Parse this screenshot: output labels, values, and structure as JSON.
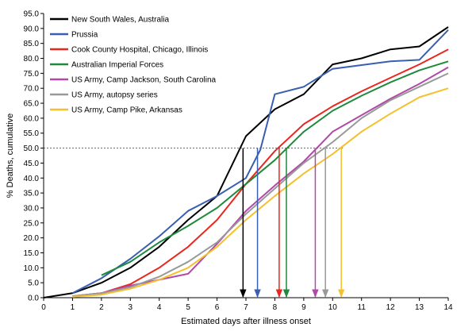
{
  "chart_data": {
    "type": "line",
    "title": "",
    "xlabel": "Estimated days after illness onset",
    "ylabel": "% Deaths, cumulative",
    "xlim": [
      0,
      14
    ],
    "ylim": [
      0,
      95
    ],
    "x_ticks": [
      0,
      1,
      2,
      3,
      4,
      5,
      6,
      7,
      8,
      9,
      10,
      11,
      12,
      13,
      14
    ],
    "y_ticks": [
      "0.0",
      "5.0",
      "10.0",
      "15.0",
      "20.0",
      "25.0",
      "30.0",
      "35.0",
      "40.0",
      "45.0",
      "50.0",
      "55.0",
      "60.0",
      "65.0",
      "70.0",
      "75.0",
      "80.0",
      "85.0",
      "90.0",
      "95.0"
    ],
    "grid": false,
    "legend_position": "top-left",
    "reference_line": {
      "y": 50,
      "style": "dotted"
    },
    "series": [
      {
        "name": "New South Wales, Australia",
        "color": "#000000",
        "points": [
          [
            0,
            0
          ],
          [
            1,
            1.5
          ],
          [
            2,
            5
          ],
          [
            3,
            10
          ],
          [
            4,
            17
          ],
          [
            5,
            26
          ],
          [
            6,
            34
          ],
          [
            7,
            54
          ],
          [
            8,
            63
          ],
          [
            9,
            68
          ],
          [
            10,
            78
          ],
          [
            11,
            80
          ],
          [
            12,
            83
          ],
          [
            13,
            84
          ],
          [
            14,
            90.5
          ]
        ],
        "arrow_x": 6.9
      },
      {
        "name": "Prussia",
        "color": "#3a5fb0",
        "points": [
          [
            1,
            1.5
          ],
          [
            2,
            6.5
          ],
          [
            3,
            13
          ],
          [
            4,
            20.5
          ],
          [
            5,
            29
          ],
          [
            6,
            34
          ],
          [
            7,
            40
          ],
          [
            7.5,
            49.5
          ],
          [
            8,
            68
          ],
          [
            9,
            70.5
          ],
          [
            10,
            76.5
          ],
          [
            12,
            79
          ],
          [
            13,
            79.5
          ],
          [
            14,
            89.5
          ]
        ],
        "arrow_x": 7.4
      },
      {
        "name": "Cook County Hospital, Chicago, Illinois",
        "color": "#e8281f",
        "points": [
          [
            1,
            0.5
          ],
          [
            2,
            1.5
          ],
          [
            3,
            4.5
          ],
          [
            4,
            10
          ],
          [
            5,
            17
          ],
          [
            6,
            26
          ],
          [
            7,
            38
          ],
          [
            8,
            49
          ],
          [
            9,
            58
          ],
          [
            10,
            64
          ],
          [
            11,
            69
          ],
          [
            12,
            73.5
          ],
          [
            13,
            78
          ],
          [
            14,
            83
          ]
        ],
        "arrow_x": 8.15
      },
      {
        "name": "Australian Imperial Forces",
        "color": "#1e8a3c",
        "points": [
          [
            2,
            7.5
          ],
          [
            3,
            12
          ],
          [
            4,
            18.5
          ],
          [
            5,
            24
          ],
          [
            6,
            30
          ],
          [
            7,
            38
          ],
          [
            8,
            46
          ],
          [
            9,
            55.5
          ],
          [
            10,
            62.5
          ],
          [
            11,
            67.5
          ],
          [
            12,
            72
          ],
          [
            13,
            76
          ],
          [
            14,
            79
          ]
        ],
        "arrow_x": 8.4
      },
      {
        "name": "US Army, Camp Jackson, South Carolina",
        "color": "#b04aa8",
        "points": [
          [
            1,
            0.5
          ],
          [
            2,
            1.5
          ],
          [
            3,
            4
          ],
          [
            4,
            6
          ],
          [
            5,
            8
          ],
          [
            6,
            18
          ],
          [
            7,
            29
          ],
          [
            8,
            37.5
          ],
          [
            9,
            45.5
          ],
          [
            10,
            55.5
          ],
          [
            11,
            61
          ],
          [
            12,
            66.5
          ],
          [
            13,
            71.5
          ],
          [
            14,
            77
          ]
        ],
        "arrow_x": 9.4
      },
      {
        "name": "US Army, autopsy series",
        "color": "#999999",
        "points": [
          [
            1,
            0.5
          ],
          [
            2,
            1.5
          ],
          [
            3,
            3.5
          ],
          [
            4,
            7
          ],
          [
            5,
            12
          ],
          [
            6,
            18.5
          ],
          [
            7,
            28
          ],
          [
            8,
            36.5
          ],
          [
            9,
            45
          ],
          [
            10,
            52
          ],
          [
            11,
            60
          ],
          [
            12,
            66
          ],
          [
            13,
            70.5
          ],
          [
            14,
            75
          ]
        ],
        "arrow_x": 9.75
      },
      {
        "name": "US Army, Camp Pike, Arkansas",
        "color": "#f5c02e",
        "points": [
          [
            1,
            0.3
          ],
          [
            2,
            1
          ],
          [
            3,
            3
          ],
          [
            4,
            6
          ],
          [
            5,
            10
          ],
          [
            6,
            17
          ],
          [
            7,
            26
          ],
          [
            8,
            34
          ],
          [
            9,
            41.5
          ],
          [
            10,
            48
          ],
          [
            11,
            55.5
          ],
          [
            12,
            61.5
          ],
          [
            13,
            67
          ],
          [
            14,
            70
          ]
        ],
        "arrow_x": 10.3
      }
    ]
  }
}
